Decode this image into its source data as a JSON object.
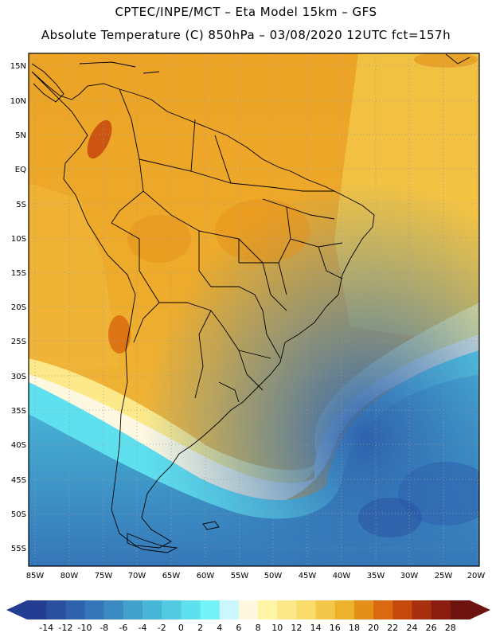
{
  "title_line1": "CPTEC/INPE/MCT –  Eta Model 15km – GFS",
  "title_line2": "Absolute Temperature (C) 850hPa – 03/08/2020 12UTC fct=157h",
  "lat_labels": [
    "15N",
    "10N",
    "5N",
    "EQ",
    "5S",
    "10S",
    "15S",
    "20S",
    "25S",
    "30S",
    "35S",
    "40S",
    "45S",
    "50S",
    "55S"
  ],
  "lon_labels": [
    "85W",
    "80W",
    "75W",
    "70W",
    "65W",
    "60W",
    "55W",
    "50W",
    "45W",
    "40W",
    "35W",
    "30W",
    "25W",
    "20W"
  ],
  "colorbar": {
    "labels": [
      "-14",
      "-12",
      "-10",
      "-8",
      "-6",
      "-4",
      "-2",
      "0",
      "2",
      "4",
      "6",
      "8",
      "10",
      "12",
      "14",
      "16",
      "18",
      "20",
      "22",
      "24",
      "26",
      "28"
    ],
    "colors": [
      "#233d92",
      "#2a4f9f",
      "#2f62ad",
      "#3576b8",
      "#3b8bc2",
      "#41a0cc",
      "#48b6d6",
      "#52cbe2",
      "#5fe0ee",
      "#73f2f7",
      "#c9f7fb",
      "#fff8e0",
      "#fff5a6",
      "#fde98a",
      "#f9dc6b",
      "#f3c84a",
      "#edb22b",
      "#e48f17",
      "#d96a0e",
      "#c5480d",
      "#a8300e",
      "#8a1d0f",
      "#6e1410"
    ]
  },
  "colors": {
    "land_outline": "#000000",
    "grid": "#9a9a9a"
  }
}
